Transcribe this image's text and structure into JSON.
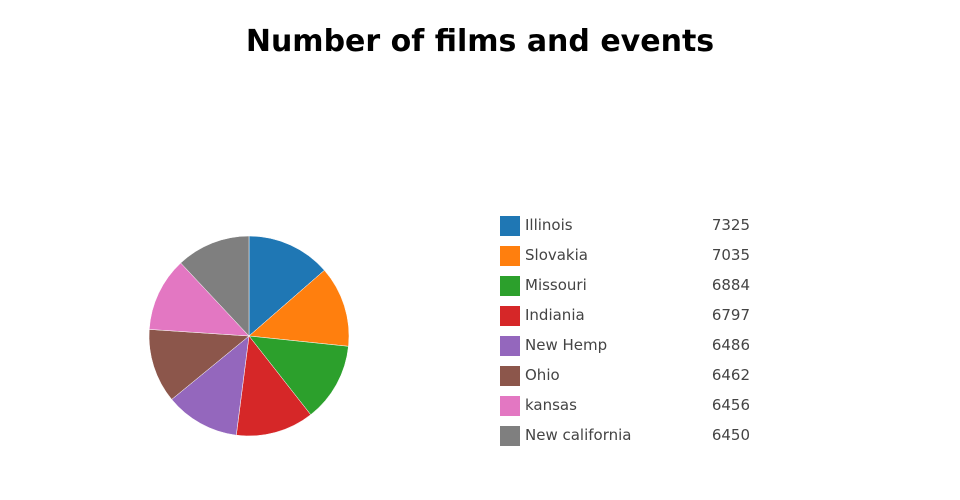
{
  "chart_data": {
    "type": "pie",
    "title": "Number of films and events",
    "categories": [
      "Illinois",
      "Slovakia",
      "Missouri",
      "Indiania",
      "New Hemp",
      "Ohio",
      "kansas",
      "New california"
    ],
    "values": [
      7325,
      7035,
      6884,
      6797,
      6486,
      6462,
      6456,
      6450
    ],
    "colors": [
      "#1f77b4",
      "#ff7f0e",
      "#2ca02c",
      "#d62728",
      "#9467bd",
      "#8c564b",
      "#e377c2",
      "#7f7f7f"
    ],
    "legend_position": "right",
    "start_angle": "top",
    "direction": "clockwise"
  }
}
